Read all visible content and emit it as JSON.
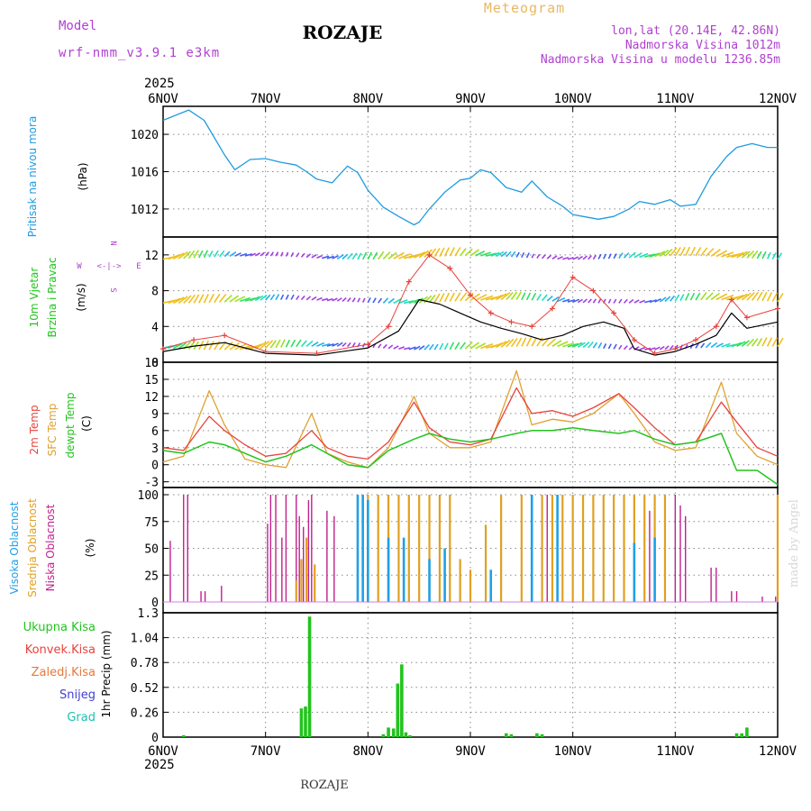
{
  "header": {
    "model_label": "Model",
    "model_name": "wrf-nmm_v3.9.1 e3km",
    "station": "ROZAJE",
    "product": "Meteogram",
    "coords": "lon,lat (20.14E, 42.86N)",
    "elevation": "Nadmorska Visina 1012m",
    "model_elevation": "Nadmorska Visina u modelu 1236.85m",
    "footer_station": "ROZAJE",
    "credit": "made by Angel",
    "year": "2025"
  },
  "colors": {
    "pressure": "#1e9be0",
    "t2m": "#e8423c",
    "sfc": "#e0a030",
    "dew": "#22c41e",
    "high_cloud": "#1ea0e8",
    "mid_cloud": "#e0a020",
    "low_cloud": "#c0208c",
    "total_precip": "#22c41e",
    "wind_black": "#000000",
    "gust": "#e8423c",
    "label_purple": "#b040d0",
    "label_orange": "#e8b860"
  },
  "chart_data": [
    {
      "type": "line",
      "title": "Pritisak na nivou mora",
      "ylabel": "(hPa)",
      "x_ticks": [
        "6NOV",
        "7NOV",
        "8NOV",
        "9NOV",
        "10NOV",
        "11NOV",
        "12NOV"
      ],
      "ylim": [
        1009,
        1023
      ],
      "yticks": [
        "1012",
        "1016",
        "1020"
      ],
      "series": [
        {
          "name": "pressure",
          "x": [
            0,
            0.25,
            0.4,
            0.6,
            0.7,
            0.85,
            1.0,
            1.15,
            1.3,
            1.4,
            1.5,
            1.65,
            1.8,
            1.9,
            2.0,
            2.15,
            2.3,
            2.45,
            2.5,
            2.6,
            2.75,
            2.9,
            3.0,
            3.1,
            3.2,
            3.35,
            3.5,
            3.6,
            3.75,
            3.9,
            4.0,
            4.1,
            4.25,
            4.4,
            4.55,
            4.65,
            4.8,
            4.95,
            5.05,
            5.2,
            5.35,
            5.5,
            5.6,
            5.75,
            5.9,
            6.0
          ],
          "values": [
            1021.5,
            1022.6,
            1021.5,
            1017.8,
            1016.2,
            1017.3,
            1017.4,
            1017.0,
            1016.7,
            1016.0,
            1015.2,
            1014.8,
            1016.6,
            1015.9,
            1014.0,
            1012.2,
            1011.2,
            1010.3,
            1010.6,
            1012.0,
            1013.8,
            1015.1,
            1015.3,
            1016.2,
            1015.9,
            1014.3,
            1013.8,
            1015.0,
            1013.3,
            1012.3,
            1011.4,
            1011.2,
            1010.9,
            1011.2,
            1012.0,
            1012.8,
            1012.5,
            1013.0,
            1012.3,
            1012.5,
            1015.5,
            1017.6,
            1018.6,
            1019.0,
            1018.6,
            1018.6
          ]
        }
      ]
    },
    {
      "type": "line",
      "title": "10m Vjetar Brzina i Pravac",
      "ylabel": "(m/s)",
      "ylim": [
        0,
        14
      ],
      "yticks": [
        "0",
        "4",
        "8",
        "12"
      ],
      "compass": [
        "N",
        "W",
        "E",
        "S"
      ],
      "series": [
        {
          "name": "wind speed",
          "x": [
            0,
            0.3,
            0.6,
            1.0,
            1.5,
            2.0,
            2.3,
            2.5,
            2.7,
            2.9,
            3.1,
            3.3,
            3.5,
            3.7,
            3.9,
            4.1,
            4.3,
            4.5,
            4.6,
            4.8,
            5.0,
            5.2,
            5.4,
            5.55,
            5.7,
            6.0
          ],
          "values": [
            1.2,
            1.8,
            2.2,
            1.0,
            0.8,
            1.6,
            3.5,
            7.0,
            6.5,
            5.5,
            4.5,
            3.8,
            3.2,
            2.5,
            3.0,
            4.0,
            4.5,
            3.8,
            1.5,
            0.8,
            1.2,
            2.0,
            3.0,
            5.5,
            3.8,
            4.5
          ]
        },
        {
          "name": "gust",
          "x": [
            0,
            0.3,
            0.6,
            1.0,
            1.5,
            2.0,
            2.2,
            2.4,
            2.6,
            2.8,
            3.0,
            3.2,
            3.4,
            3.6,
            3.8,
            4.0,
            4.2,
            4.4,
            4.6,
            4.8,
            5.0,
            5.2,
            5.4,
            5.55,
            5.7,
            6.0
          ],
          "values": [
            1.5,
            2.5,
            3.0,
            1.2,
            1.0,
            2.0,
            4.0,
            9.0,
            12.0,
            10.5,
            7.5,
            5.5,
            4.5,
            4.0,
            6.0,
            9.5,
            8.0,
            5.5,
            2.5,
            1.0,
            1.5,
            2.5,
            4.0,
            7.0,
            5.0,
            6.0
          ]
        }
      ]
    },
    {
      "type": "line",
      "title": "2m Temp / SFC Temp / dewpt Temp",
      "ylabel": "(C)",
      "ylim": [
        -4,
        18
      ],
      "yticks": [
        "-3",
        "0",
        "3",
        "6",
        "9",
        "12",
        "15",
        "18"
      ],
      "series": [
        {
          "name": "2m Temp",
          "x": [
            0,
            0.2,
            0.45,
            0.6,
            0.8,
            1.0,
            1.2,
            1.45,
            1.6,
            1.8,
            2.0,
            2.2,
            2.45,
            2.6,
            2.8,
            3.0,
            3.2,
            3.45,
            3.6,
            3.8,
            4.0,
            4.2,
            4.45,
            4.6,
            4.8,
            5.0,
            5.2,
            5.45,
            5.6,
            5.8,
            6.0
          ],
          "values": [
            3.0,
            2.5,
            8.5,
            6.0,
            3.5,
            1.5,
            2.0,
            6.0,
            3.0,
            1.5,
            1.0,
            4.0,
            11.0,
            6.5,
            4.0,
            3.5,
            4.5,
            13.5,
            9.0,
            9.5,
            8.5,
            10.0,
            12.5,
            10.0,
            6.5,
            3.5,
            4.0,
            11.0,
            7.5,
            3.0,
            1.5
          ]
        },
        {
          "name": "SFC Temp",
          "x": [
            0,
            0.2,
            0.45,
            0.6,
            0.8,
            1.0,
            1.2,
            1.45,
            1.6,
            1.8,
            2.0,
            2.2,
            2.45,
            2.6,
            2.8,
            3.0,
            3.2,
            3.45,
            3.6,
            3.8,
            4.0,
            4.2,
            4.45,
            4.6,
            4.8,
            5.0,
            5.2,
            5.45,
            5.6,
            5.8,
            6.0
          ],
          "values": [
            0.5,
            1.5,
            13.0,
            7.0,
            1.0,
            0.0,
            -0.5,
            9.0,
            2.0,
            0.5,
            -0.5,
            3.0,
            12.0,
            5.5,
            3.0,
            3.0,
            4.0,
            16.5,
            7.0,
            8.0,
            7.5,
            9.0,
            12.5,
            9.0,
            4.0,
            2.5,
            3.0,
            14.5,
            5.5,
            1.5,
            0.0
          ]
        },
        {
          "name": "dewpt Temp",
          "x": [
            0,
            0.2,
            0.45,
            0.6,
            0.8,
            1.0,
            1.2,
            1.45,
            1.6,
            1.8,
            2.0,
            2.2,
            2.45,
            2.6,
            2.8,
            3.0,
            3.2,
            3.45,
            3.6,
            3.8,
            4.0,
            4.2,
            4.45,
            4.6,
            4.8,
            5.0,
            5.2,
            5.45,
            5.6,
            5.8,
            6.0
          ],
          "values": [
            2.5,
            2.0,
            4.0,
            3.5,
            2.0,
            0.5,
            1.5,
            3.5,
            2.0,
            0.0,
            -0.5,
            2.5,
            4.5,
            5.5,
            4.5,
            4.0,
            4.5,
            5.5,
            6.0,
            6.0,
            6.5,
            6.0,
            5.5,
            6.0,
            4.5,
            3.5,
            4.0,
            5.5,
            -1.0,
            -1.0,
            -3.5
          ]
        }
      ]
    },
    {
      "type": "bar",
      "title": "Visoka / Srednja / Niska Oblacnost",
      "labels": [
        "Visoka Oblacnost",
        "Srednja Oblacnost",
        "Niska Oblacnost"
      ],
      "ylabel": "(%)",
      "ylim": [
        0,
        100
      ],
      "yticks": [
        "0",
        "25",
        "50",
        "75",
        "100"
      ],
      "series": [
        {
          "name": "Niska",
          "x": [
            0.07,
            0.2,
            0.24,
            0.37,
            0.41,
            0.57,
            1.02,
            1.05,
            1.1,
            1.16,
            1.2,
            1.3,
            1.33,
            1.37,
            1.42,
            1.45,
            1.6,
            1.67,
            3.6,
            3.75,
            3.9,
            4.0,
            4.6,
            4.7,
            4.75,
            5.0,
            5.05,
            5.1,
            5.35,
            5.4,
            5.55,
            5.6,
            5.85,
            5.98
          ],
          "values": [
            57,
            100,
            100,
            10,
            10,
            15,
            73,
            100,
            100,
            60,
            100,
            100,
            80,
            70,
            95,
            100,
            85,
            80,
            95,
            100,
            100,
            95,
            100,
            100,
            85,
            100,
            90,
            80,
            32,
            32,
            10,
            10,
            5,
            5
          ]
        },
        {
          "name": "Srednja",
          "x": [
            1.3,
            1.35,
            1.4,
            1.48,
            2.0,
            2.1,
            2.2,
            2.3,
            2.4,
            2.5,
            2.6,
            2.7,
            2.8,
            2.9,
            3.0,
            3.15,
            3.3,
            3.5,
            3.6,
            3.7,
            3.8,
            3.9,
            4.0,
            4.1,
            4.2,
            4.3,
            4.4,
            4.5,
            4.6,
            4.7,
            4.8,
            4.9,
            6.0
          ],
          "values": [
            20,
            40,
            60,
            35,
            100,
            100,
            100,
            100,
            100,
            100,
            100,
            100,
            100,
            40,
            30,
            72,
            100,
            100,
            100,
            100,
            100,
            100,
            100,
            100,
            100,
            100,
            100,
            100,
            100,
            100,
            100,
            100,
            100
          ]
        },
        {
          "name": "Visoka",
          "x": [
            1.9,
            1.95,
            2.0,
            2.2,
            2.35,
            2.6,
            2.75,
            3.2,
            3.6,
            3.85,
            4.6,
            4.8
          ],
          "values": [
            100,
            100,
            95,
            60,
            60,
            40,
            50,
            30,
            100,
            100,
            55,
            60
          ]
        }
      ]
    },
    {
      "type": "bar",
      "title": "1hr Precip",
      "ylabel": "1hr Precip (mm)",
      "legend": [
        "Ukupna Kisa",
        "Konvek.Kisa",
        "Zaledj.Kisa",
        "Snijeg",
        "Grad"
      ],
      "ylim": [
        0,
        1.3
      ],
      "yticks": [
        "0",
        "0.26",
        "0.52",
        "0.78",
        "1.04",
        "1.3"
      ],
      "series": [
        {
          "name": "Ukupna Kisa",
          "x": [
            0.2,
            1.35,
            1.39,
            1.43,
            2.15,
            2.2,
            2.25,
            2.29,
            2.33,
            2.37,
            2.41,
            3.35,
            3.4,
            3.65,
            3.7,
            5.6,
            5.65,
            5.7
          ],
          "values": [
            0.02,
            0.3,
            0.32,
            1.26,
            0.03,
            0.1,
            0.09,
            0.56,
            0.76,
            0.05,
            0.02,
            0.04,
            0.03,
            0.04,
            0.03,
            0.04,
            0.04,
            0.1
          ]
        }
      ]
    }
  ]
}
